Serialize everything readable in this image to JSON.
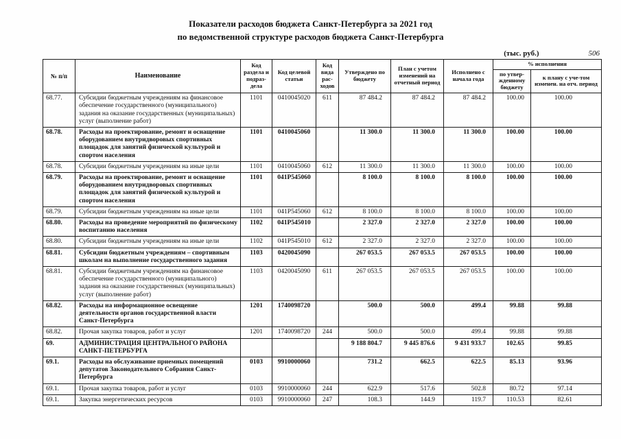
{
  "doc": {
    "title_line1": "Показатели расходов бюджета Санкт-Петербурга за 2021 год",
    "title_line2": "по ведомственной структуре расходов бюджета Санкт-Петербурга",
    "units_note": "(тыс. руб.)",
    "page_number": "506"
  },
  "table": {
    "headers": {
      "num": "№ п/п",
      "name": "Наименование",
      "section": "Код раздела и подраз-дела",
      "article": "Код целевой статьи",
      "expense_type": "Код вида рас-ходов",
      "approved": "Утверждено по бюджету",
      "plan": "План с учетом изменений на отчетный период",
      "executed": "Исполнено с начала года",
      "pct_group": "% исполнения",
      "pct_budget": "по утвер-жденному бюджету",
      "pct_plan": "к плану с уче-том изменен. на отч. период"
    },
    "rows": [
      {
        "num": "68.77.",
        "name": "Субсидии бюджетным учреждениям на финансовое обеспечение государственного (муниципального) задания на оказание государственных (муниципальных) услуг (выполнение работ)",
        "bold": false,
        "section": "1101",
        "article": "0410045020",
        "type": "611",
        "approved": "87 484.2",
        "plan": "87 484.2",
        "executed": "87 484.2",
        "pct_budget": "100.00",
        "pct_plan": "100.00"
      },
      {
        "num": "68.78.",
        "name": "Расходы на проектирование, ремонт и оснащение оборудованием  внутридворовых спортивных площадок для занятий физической культурой и спортом населения",
        "bold": true,
        "section": "1101",
        "article": "0410045060",
        "type": "",
        "approved": "11 300.0",
        "plan": "11 300.0",
        "executed": "11 300.0",
        "pct_budget": "100.00",
        "pct_plan": "100.00"
      },
      {
        "num": "68.78.",
        "name": "Субсидии бюджетным учреждениям на иные цели",
        "bold": false,
        "section": "1101",
        "article": "0410045060",
        "type": "612",
        "approved": "11 300.0",
        "plan": "11 300.0",
        "executed": "11 300.0",
        "pct_budget": "100.00",
        "pct_plan": "100.00"
      },
      {
        "num": "68.79.",
        "name": "Расходы на проектирование, ремонт и оснащение оборудованием  внутридворовых спортивных площадок для занятий физической культурой и спортом населения",
        "bold": true,
        "section": "1101",
        "article": "041P545060",
        "type": "",
        "approved": "8 100.0",
        "plan": "8 100.0",
        "executed": "8 100.0",
        "pct_budget": "100.00",
        "pct_plan": "100.00"
      },
      {
        "num": "68.79.",
        "name": "Субсидии бюджетным учреждениям на иные цели",
        "bold": false,
        "section": "1101",
        "article": "041P545060",
        "type": "612",
        "approved": "8 100.0",
        "plan": "8 100.0",
        "executed": "8 100.0",
        "pct_budget": "100.00",
        "pct_plan": "100.00"
      },
      {
        "num": "68.80.",
        "name": "Расходы на проведение мероприятий по физическому воспитанию населения",
        "bold": true,
        "section": "1102",
        "article": "041P545010",
        "type": "",
        "approved": "2 327.0",
        "plan": "2 327.0",
        "executed": "2 327.0",
        "pct_budget": "100.00",
        "pct_plan": "100.00"
      },
      {
        "num": "68.80.",
        "name": "Субсидии бюджетным учреждениям на иные цели",
        "bold": false,
        "section": "1102",
        "article": "041P545010",
        "type": "612",
        "approved": "2 327.0",
        "plan": "2 327.0",
        "executed": "2 327.0",
        "pct_budget": "100.00",
        "pct_plan": "100.00"
      },
      {
        "num": "68.81.",
        "name": "Субсидии бюджетным учреждениям – спортивным школам на выполнение государственного задания",
        "bold": true,
        "section": "1103",
        "article": "0420045090",
        "type": "",
        "approved": "267 053.5",
        "plan": "267 053.5",
        "executed": "267 053.5",
        "pct_budget": "100.00",
        "pct_plan": "100.00"
      },
      {
        "num": "68.81.",
        "name": "Субсидии бюджетным учреждениям на финансовое обеспечение государственного (муниципального) задания на оказание государственных (муниципальных) услуг (выполнение работ)",
        "bold": false,
        "section": "1103",
        "article": "0420045090",
        "type": "611",
        "approved": "267 053.5",
        "plan": "267 053.5",
        "executed": "267 053.5",
        "pct_budget": "100.00",
        "pct_plan": "100.00"
      },
      {
        "num": "68.82.",
        "name": "Расходы на информационное освещение деятельности органов государственной власти Санкт-Петербурга",
        "bold": true,
        "section": "1201",
        "article": "1740098720",
        "type": "",
        "approved": "500.0",
        "plan": "500.0",
        "executed": "499.4",
        "pct_budget": "99.88",
        "pct_plan": "99.88"
      },
      {
        "num": "68.82.",
        "name": "Прочая закупка товаров, работ и услуг",
        "bold": false,
        "section": "1201",
        "article": "1740098720",
        "type": "244",
        "approved": "500.0",
        "plan": "500.0",
        "executed": "499.4",
        "pct_budget": "99.88",
        "pct_plan": "99.88"
      },
      {
        "num": "69.",
        "name": "АДМИНИСТРАЦИЯ ЦЕНТРАЛЬНОГО РАЙОНА САНКТ-ПЕТЕРБУРГА",
        "bold": true,
        "section": "",
        "article": "",
        "type": "",
        "approved": "9 188 804.7",
        "plan": "9 445 876.6",
        "executed": "9 431 933.7",
        "pct_budget": "102.65",
        "pct_plan": "99.85"
      },
      {
        "num": "69.1.",
        "name": "Расходы на обслуживание приемных помещений депутатов Законодательного Собрания Санкт-Петербурга",
        "bold": true,
        "section": "0103",
        "article": "9910000060",
        "type": "",
        "approved": "731.2",
        "plan": "662.5",
        "executed": "622.5",
        "pct_budget": "85.13",
        "pct_plan": "93.96"
      },
      {
        "num": "69.1.",
        "name": "Прочая закупка товаров, работ и услуг",
        "bold": false,
        "section": "0103",
        "article": "9910000060",
        "type": "244",
        "approved": "622.9",
        "plan": "517.6",
        "executed": "502.8",
        "pct_budget": "80.72",
        "pct_plan": "97.14"
      },
      {
        "num": "69.1.",
        "name": "Закупка энергетических ресурсов",
        "bold": false,
        "section": "0103",
        "article": "9910000060",
        "type": "247",
        "approved": "108.3",
        "plan": "144.9",
        "executed": "119.7",
        "pct_budget": "110.53",
        "pct_plan": "82.61"
      }
    ]
  }
}
